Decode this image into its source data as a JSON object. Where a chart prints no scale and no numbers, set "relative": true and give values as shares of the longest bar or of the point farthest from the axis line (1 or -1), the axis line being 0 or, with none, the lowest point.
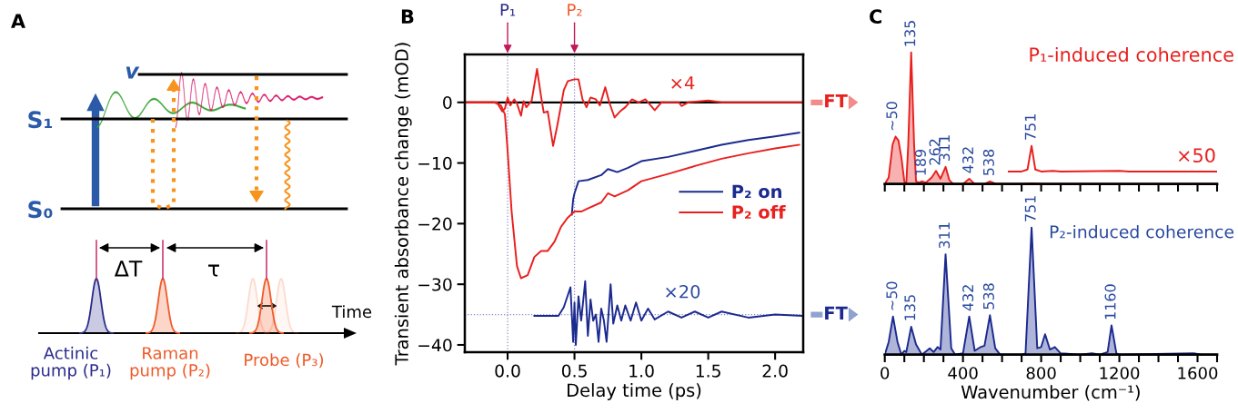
{
  "chart_data": [
    {
      "type": "other",
      "annotations": [
        "A",
        "v",
        "S₁",
        "S₀",
        "ΔT",
        "τ",
        "Time",
        "Actinic\npump (P₁)",
        "Raman\npump (P₂)",
        "Probe (P₃)"
      ]
    },
    {
      "type": "line",
      "xlabel": "Delay time (ps)",
      "ylabel": "Transient absorbance change (mOD)",
      "xlim": [
        -0.32,
        2.21
      ],
      "ylim": [
        -41.2,
        7.9
      ],
      "xticks": [
        {
          "value": 0,
          "label": "0.0"
        },
        0.5,
        {
          "value": 1,
          "label": "1.0"
        },
        1.5,
        {
          "value": 2,
          "label": "2.0"
        }
      ],
      "yticks": [
        {
          "value": -40,
          "label": "−40"
        },
        {
          "value": -30,
          "label": "−30"
        },
        {
          "value": -20,
          "label": "−20"
        },
        {
          "value": -10,
          "label": "−10"
        },
        0
      ],
      "legend": "right",
      "series": [
        {
          "name": "P₂ on",
          "color": "#1b2a8f",
          "x": [
            0.48,
            0.49,
            0.5,
            0.53,
            0.6,
            0.7,
            0.75,
            0.82,
            0.9,
            1.0,
            1.2,
            1.4,
            1.6,
            1.8,
            2.0,
            2.18
          ],
          "values": [
            -18.5,
            -16,
            -15,
            -13,
            -12.8,
            -12,
            -11,
            -11.5,
            -10.8,
            -9.7,
            -9,
            -8,
            -7,
            -6.2,
            -5.6,
            -5
          ]
        },
        {
          "name": "P₂ off",
          "color": "#e8201e",
          "x": [
            -0.32,
            -0.1,
            -0.05,
            -0.02,
            0,
            0.03,
            0.07,
            0.1,
            0.15,
            0.2,
            0.25,
            0.3,
            0.35,
            0.4,
            0.45,
            0.5,
            0.55,
            0.6,
            0.7,
            0.75,
            0.8,
            0.9,
            1.0,
            1.2,
            1.4,
            1.6,
            1.8,
            2.0,
            2.18
          ],
          "values": [
            0,
            0,
            -0.5,
            -2,
            -8,
            -18,
            -27,
            -29,
            -28.5,
            -25.5,
            -24.5,
            -24.5,
            -23,
            -20.5,
            -19,
            -18,
            -18,
            -17.5,
            -16.5,
            -15,
            -15.5,
            -14.5,
            -13,
            -11.8,
            -10.5,
            -9.3,
            -8.4,
            -7.6,
            -7
          ]
        },
        {
          "color": "#e8201e",
          "x": [
            -0.32,
            -0.08,
            -0.04,
            -0.02,
            0,
            0.02,
            0.05,
            0.07,
            0.1,
            0.12,
            0.14,
            0.18,
            0.22,
            0.25,
            0.27,
            0.3,
            0.34,
            0.37,
            0.42,
            0.45,
            0.5,
            0.53,
            0.56,
            0.59,
            0.62,
            0.66,
            0.69,
            0.73,
            0.76,
            0.8,
            0.84,
            0.88,
            0.93,
            0.98,
            1.03,
            1.1,
            1.15,
            1.28,
            1.3,
            1.35,
            1.5,
            1.6,
            2.2
          ],
          "values": [
            0,
            0,
            -1.5,
            -1,
            0.8,
            -0.5,
            0.5,
            -0.2,
            -2.2,
            0.2,
            -0.8,
            0.3,
            5.5,
            1,
            -1.7,
            -1.5,
            -7.2,
            -4,
            2,
            3.5,
            3.8,
            3.8,
            0.5,
            -0.8,
            0.8,
            0.5,
            -0.5,
            2.5,
            0,
            -2.5,
            -1.5,
            -0.8,
            0.5,
            0,
            0.5,
            -1.3,
            0,
            0,
            -0.6,
            0,
            0.3,
            0,
            0
          ]
        },
        {
          "color": "#1b2a8f",
          "x": [
            0.2,
            0.38,
            0.42,
            0.47,
            0.49,
            0.5,
            0.51,
            0.53,
            0.55,
            0.58,
            0.6,
            0.62,
            0.64,
            0.66,
            0.68,
            0.7,
            0.72,
            0.74,
            0.77,
            0.79,
            0.82,
            0.85,
            0.88,
            0.92,
            0.96,
            1.0,
            1.05,
            1.1,
            1.2,
            1.3,
            1.4,
            1.5,
            1.6,
            1.8,
            2.0,
            2.2
          ],
          "values": [
            -35.2,
            -35.2,
            -33.8,
            -30.5,
            -39.5,
            -33,
            -40,
            -32,
            -36,
            -29.5,
            -38.5,
            -32.5,
            -36,
            -35,
            -39.5,
            -34,
            -36,
            -39.5,
            -30,
            -36.5,
            -33.5,
            -36,
            -33.5,
            -36,
            -33,
            -36,
            -34,
            -35.8,
            -34.5,
            -35.5,
            -34.5,
            -35.5,
            -34.5,
            -35.5,
            -35,
            -35.2
          ]
        }
      ],
      "ref_lines": [
        {
          "axis": "x",
          "value": 0,
          "label": "P₁",
          "color": "#8c8cc8",
          "line_style": "dotted"
        },
        {
          "axis": "x",
          "value": 0.5,
          "label": "P₂",
          "color": "#8c8cc8",
          "line_style": "dotted"
        },
        {
          "axis": "y",
          "value": 0,
          "label": "FT",
          "color": "#000000",
          "line_style": "solid"
        },
        {
          "axis": "y",
          "value": -35,
          "label": "FT",
          "color": "#8c8cc8",
          "line_style": "dotted"
        }
      ],
      "annotations": [
        "B",
        "×4",
        "×20"
      ]
    },
    {
      "type": "area",
      "relative": true,
      "xlim": [
        0,
        1700
      ],
      "xticks": [
        0,
        {
          "value": 100,
          "label": null
        },
        {
          "value": 200,
          "label": null
        },
        {
          "value": 300,
          "label": null
        },
        400,
        {
          "value": 500,
          "label": null
        },
        {
          "value": 600,
          "label": null
        },
        {
          "value": 700,
          "label": null
        },
        800,
        {
          "value": 900,
          "label": null
        },
        {
          "value": 1000,
          "label": null
        },
        {
          "value": 1100,
          "label": null
        },
        1200,
        {
          "value": 1300,
          "label": null
        },
        {
          "value": 1400,
          "label": null
        },
        {
          "value": 1500,
          "label": null
        },
        1600,
        {
          "value": 1700,
          "label": null
        }
      ],
      "tick_labels": false,
      "series": [
        {
          "color": "#e8201e",
          "x": [
            0,
            20,
            40,
            55,
            70,
            85,
            100,
            110,
            120,
            135,
            150,
            160,
            175,
            189,
            210,
            240,
            262,
            285,
            311,
            330,
            350,
            400,
            432,
            460,
            510,
            538,
            570,
            700,
            751,
            800,
            1700
          ],
          "values": [
            0,
            0.05,
            0.3,
            0.36,
            0.33,
            0.2,
            0.02,
            0,
            0.3,
            1,
            0.3,
            0.02,
            0.01,
            0.02,
            0.01,
            0.05,
            0.1,
            0.04,
            0.13,
            0.03,
            0,
            0,
            0.04,
            0,
            0,
            0.02,
            0,
            0,
            0.005,
            0,
            0
          ]
        },
        {
          "type": "line",
          "color": "#e8201e",
          "x": [
            634,
            700,
            730,
            751,
            770,
            800,
            860,
            900,
            1200,
            1250,
            1700
          ],
          "values": [
            0.095,
            0.095,
            0.11,
            0.29,
            0.11,
            0.095,
            0.1,
            0.095,
            0.1,
            0.095,
            0.095
          ]
        }
      ],
      "annotations": [
        "C",
        "P₁-induced coherence",
        "×50",
        {
          "text": "~50",
          "x": 42,
          "y": 0.36
        },
        {
          "text": "135",
          "x": 135,
          "y": 1
        },
        {
          "text": "189",
          "x": 189,
          "y": 0.02
        },
        {
          "text": "262",
          "x": 262,
          "y": 0.1
        },
        {
          "text": "311",
          "x": 311,
          "y": 0.13
        },
        {
          "text": "432",
          "x": 432,
          "y": 0.04
        },
        {
          "text": "538",
          "x": 538,
          "y": 0.02
        },
        {
          "text": "751",
          "x": 751,
          "y": 0.29
        }
      ]
    },
    {
      "type": "area",
      "relative": true,
      "xlim": [
        0,
        1700
      ],
      "xlabel": "Wavenumber (cm⁻¹)",
      "xticks": [
        0,
        {
          "value": 100,
          "label": null
        },
        {
          "value": 200,
          "label": null
        },
        {
          "value": 300,
          "label": null
        },
        400,
        {
          "value": 500,
          "label": null
        },
        {
          "value": 600,
          "label": null
        },
        {
          "value": 700,
          "label": null
        },
        800,
        {
          "value": 900,
          "label": null
        },
        {
          "value": 1000,
          "label": null
        },
        {
          "value": 1100,
          "label": null
        },
        1200,
        {
          "value": 1300,
          "label": null
        },
        {
          "value": 1400,
          "label": null
        },
        {
          "value": 1500,
          "label": null
        },
        1600,
        {
          "value": 1700,
          "label": null
        }
      ],
      "tick_labels": "x",
      "series": [
        {
          "color": "#1b2a8f",
          "x": [
            0,
            20,
            42,
            65,
            85,
            100,
            110,
            135,
            160,
            190,
            230,
            250,
            270,
            285,
            311,
            340,
            360,
            400,
            432,
            460,
            490,
            510,
            538,
            565,
            590,
            700,
            720,
            751,
            780,
            800,
            820,
            845,
            870,
            900,
            1000,
            1060,
            1100,
            1140,
            1160,
            1185,
            1200,
            1580,
            1620,
            1700
          ],
          "values": [
            0,
            0.1,
            0.3,
            0.1,
            0,
            0.03,
            0.02,
            0.22,
            0.08,
            0,
            0.05,
            0.02,
            0.06,
            0.04,
            0.79,
            0.05,
            0,
            0.01,
            0.3,
            0.03,
            0.06,
            0.07,
            0.31,
            0.05,
            0,
            0,
            0.01,
            1,
            0.05,
            0.06,
            0.16,
            0.04,
            0.06,
            0.01,
            0,
            0.01,
            0,
            0.02,
            0.23,
            0.01,
            0,
            0.01,
            0,
            0
          ]
        }
      ],
      "annotations": [
        "P₂-induced coherence",
        {
          "text": "~50",
          "x": 42,
          "y": 0.3
        },
        {
          "text": "135",
          "x": 135,
          "y": 0.22
        },
        {
          "text": "311",
          "x": 311,
          "y": 0.79
        },
        {
          "text": "432",
          "x": 432,
          "y": 0.3
        },
        {
          "text": "538",
          "x": 538,
          "y": 0.31
        },
        {
          "text": "751",
          "x": 751,
          "y": 1
        },
        {
          "text": "1160",
          "x": 1160,
          "y": 0.23
        }
      ]
    }
  ]
}
